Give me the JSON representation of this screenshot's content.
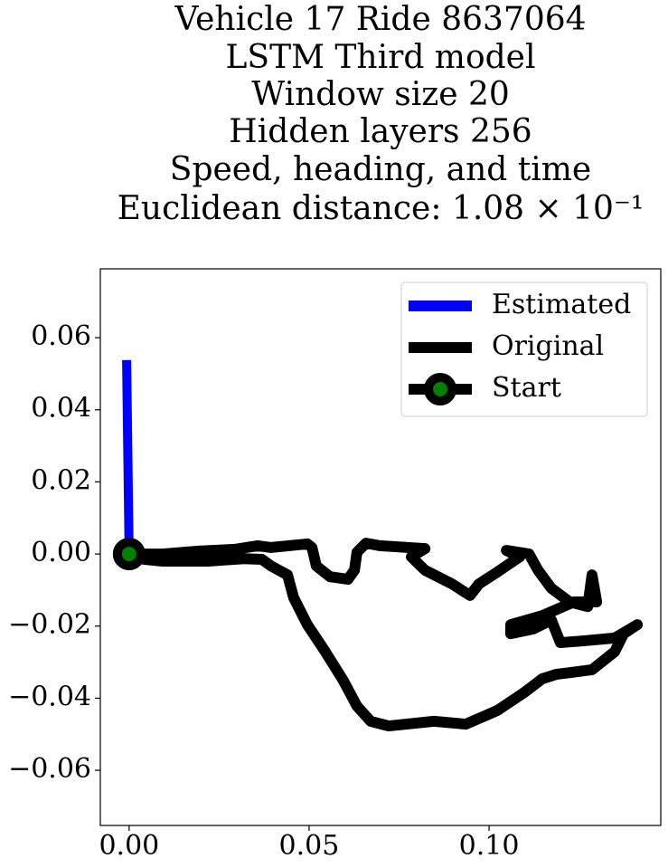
{
  "chart_data": {
    "type": "line",
    "title": [
      "Vehicle 17 Ride 8637064",
      "LSTM Third model",
      "Window size 20",
      "Hidden layers 256",
      "Speed, heading, and time",
      "Euclidean distance: 1.08 × 10⁻¹"
    ],
    "xlim": [
      -0.008,
      0.1477
    ],
    "ylim": [
      -0.0753,
      0.0791
    ],
    "xticks": [
      {
        "value": 0,
        "label": "0.00"
      },
      {
        "value": 0.05,
        "label": "0.05"
      },
      {
        "value": 0.1,
        "label": "0.10"
      }
    ],
    "yticks": [
      {
        "value": -0.06,
        "label": "−0.06"
      },
      {
        "value": -0.04,
        "label": "−0.04"
      },
      {
        "value": -0.02,
        "label": "−0.02"
      },
      {
        "value": 0,
        "label": "0.00"
      },
      {
        "value": 0.02,
        "label": "0.02"
      },
      {
        "value": 0.04,
        "label": "0.04"
      },
      {
        "value": 0.06,
        "label": "0.06"
      }
    ],
    "legend": "upper right",
    "series": [
      {
        "name": "Estimated",
        "color": "#0000ff",
        "x": [
          -0.0007,
          0
        ],
        "values": [
          0.0538,
          0
        ]
      },
      {
        "name": "Original",
        "color": "#000000",
        "x": [
          0,
          0.0093,
          0.0193,
          0.0294,
          0.0357,
          0.0394,
          0.0495,
          0.0508,
          0.052,
          0.0558,
          0.0608,
          0.0626,
          0.0633,
          0.0658,
          0.0696,
          0.0822,
          0.0784,
          0.0822,
          0.0897,
          0.0947,
          0.0972,
          0.1023,
          0.1048,
          0.1085,
          0.1048,
          0.1111,
          0.1136,
          0.1173,
          0.1224,
          0.1274,
          0.1286,
          0.1299,
          0.1236,
          0.1148,
          0.106,
          0.106,
          0.1123,
          0.1173,
          0.1198,
          0.1261,
          0.1349,
          0.1412,
          0.1374,
          0.1349,
          0.1286,
          0.1186,
          0.1148,
          0.1098,
          0.1023,
          0.0935,
          0.0847,
          0.0721,
          0.0671,
          0.0633,
          0.0595,
          0.0545,
          0.0495,
          0.0457,
          0.044,
          0.0394,
          0.0369,
          0.0319,
          0.0219,
          0.0093,
          0.0043,
          0
        ],
        "values": [
          0,
          0,
          0.0008,
          0.0013,
          0.0023,
          0.0018,
          0.0028,
          0.0018,
          -0.0033,
          -0.0063,
          -0.007,
          -0.0045,
          0.0005,
          0.003,
          0.0023,
          0.0015,
          -0.0008,
          -0.0045,
          -0.0083,
          -0.0115,
          -0.0083,
          -0.005,
          -0.0033,
          -0.0008,
          0.001,
          0,
          -0.0045,
          -0.0095,
          -0.0133,
          -0.0146,
          -0.0058,
          -0.0133,
          -0.0133,
          -0.0171,
          -0.0196,
          -0.0221,
          -0.0208,
          -0.0183,
          -0.0246,
          -0.0241,
          -0.0233,
          -0.0196,
          -0.0221,
          -0.0271,
          -0.0321,
          -0.0334,
          -0.0346,
          -0.0384,
          -0.0434,
          -0.0472,
          -0.0464,
          -0.0477,
          -0.0464,
          -0.0422,
          -0.0351,
          -0.0271,
          -0.0196,
          -0.0121,
          -0.0058,
          -0.0033,
          -0.0015,
          -0.0013,
          -0.002,
          -0.002,
          -0.0015,
          0
        ]
      },
      {
        "name": "Start",
        "color": "#008000",
        "x": [
          0
        ],
        "values": [
          0
        ]
      }
    ]
  }
}
